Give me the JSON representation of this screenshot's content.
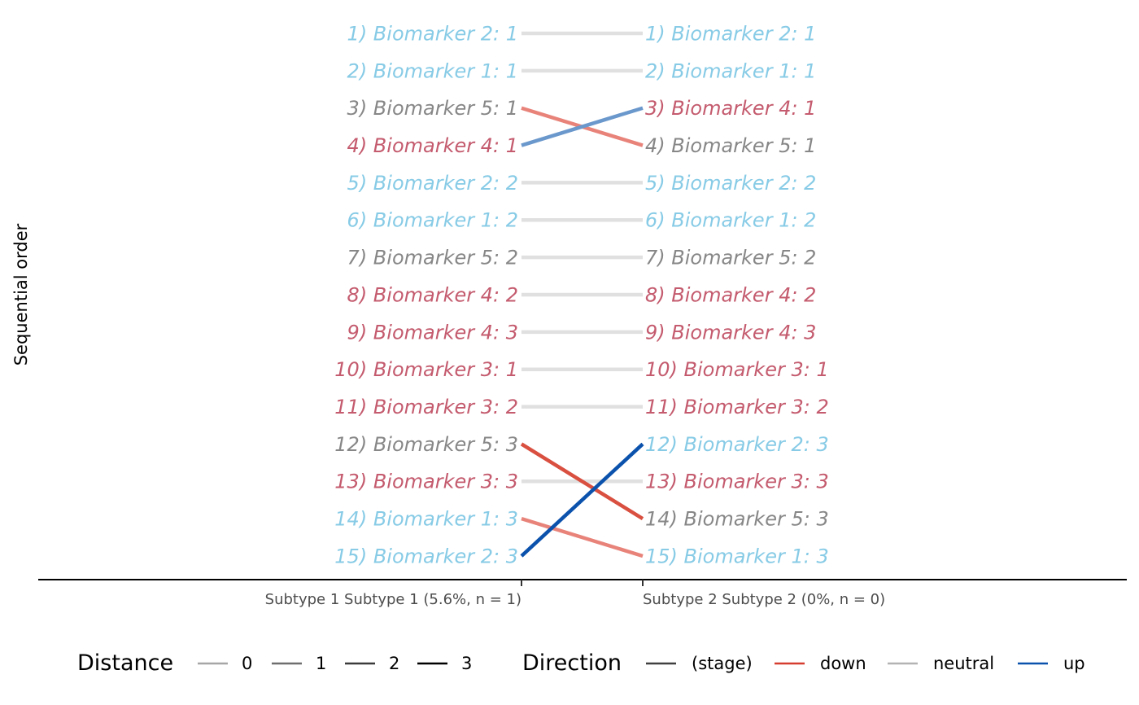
{
  "chart_data": {
    "type": "slope",
    "ylabel": "Sequential order",
    "categories": [
      "Subtype 1 Subtype 1 (5.6%, n = 1)",
      "Subtype 2 Subtype 2 (0%, n = 0)"
    ],
    "colors": {
      "biomarker_1": "#87cbe6",
      "biomarker_2": "#87cbe6",
      "biomarker_3": "#c45b6e",
      "biomarker_4": "#c45b6e",
      "biomarker_5": "#878787",
      "neutral": "#e0e0e0",
      "down_light": "#e8837a",
      "down_dark": "#d94f40",
      "up_light": "#6b98cc",
      "up_dark": "#0b52ad"
    },
    "left_labels": [
      {
        "text": "1) Biomarker 2: 1",
        "group": "biomarker_2"
      },
      {
        "text": "2) Biomarker 1: 1",
        "group": "biomarker_1"
      },
      {
        "text": "3) Biomarker 5: 1",
        "group": "biomarker_5"
      },
      {
        "text": "4) Biomarker 4: 1",
        "group": "biomarker_4"
      },
      {
        "text": "5) Biomarker 2: 2",
        "group": "biomarker_2"
      },
      {
        "text": "6) Biomarker 1: 2",
        "group": "biomarker_1"
      },
      {
        "text": "7) Biomarker 5: 2",
        "group": "biomarker_5"
      },
      {
        "text": "8) Biomarker 4: 2",
        "group": "biomarker_4"
      },
      {
        "text": "9) Biomarker 4: 3",
        "group": "biomarker_4"
      },
      {
        "text": "10) Biomarker 3: 1",
        "group": "biomarker_3"
      },
      {
        "text": "11) Biomarker 3: 2",
        "group": "biomarker_3"
      },
      {
        "text": "12) Biomarker 5: 3",
        "group": "biomarker_5"
      },
      {
        "text": "13) Biomarker 3: 3",
        "group": "biomarker_3"
      },
      {
        "text": "14) Biomarker 1: 3",
        "group": "biomarker_1"
      },
      {
        "text": "15) Biomarker 2: 3",
        "group": "biomarker_2"
      }
    ],
    "right_labels": [
      {
        "text": "1) Biomarker 2: 1",
        "group": "biomarker_2"
      },
      {
        "text": "2) Biomarker 1: 1",
        "group": "biomarker_1"
      },
      {
        "text": "3) Biomarker 4: 1",
        "group": "biomarker_4"
      },
      {
        "text": "4) Biomarker 5: 1",
        "group": "biomarker_5"
      },
      {
        "text": "5) Biomarker 2: 2",
        "group": "biomarker_2"
      },
      {
        "text": "6) Biomarker 1: 2",
        "group": "biomarker_1"
      },
      {
        "text": "7) Biomarker 5: 2",
        "group": "biomarker_5"
      },
      {
        "text": "8) Biomarker 4: 2",
        "group": "biomarker_4"
      },
      {
        "text": "9) Biomarker 4: 3",
        "group": "biomarker_4"
      },
      {
        "text": "10) Biomarker 3: 1",
        "group": "biomarker_3"
      },
      {
        "text": "11) Biomarker 3: 2",
        "group": "biomarker_3"
      },
      {
        "text": "12) Biomarker 2: 3",
        "group": "biomarker_2"
      },
      {
        "text": "13) Biomarker 3: 3",
        "group": "biomarker_3"
      },
      {
        "text": "14) Biomarker 5: 3",
        "group": "biomarker_5"
      },
      {
        "text": "15) Biomarker 1: 3",
        "group": "biomarker_1"
      }
    ],
    "segments": [
      {
        "from": 1,
        "to": 1,
        "direction": "neutral",
        "distance": 0
      },
      {
        "from": 2,
        "to": 2,
        "direction": "neutral",
        "distance": 0
      },
      {
        "from": 3,
        "to": 4,
        "direction": "down",
        "distance": 1
      },
      {
        "from": 4,
        "to": 3,
        "direction": "up",
        "distance": 1
      },
      {
        "from": 5,
        "to": 5,
        "direction": "neutral",
        "distance": 0
      },
      {
        "from": 6,
        "to": 6,
        "direction": "neutral",
        "distance": 0
      },
      {
        "from": 7,
        "to": 7,
        "direction": "neutral",
        "distance": 0
      },
      {
        "from": 8,
        "to": 8,
        "direction": "neutral",
        "distance": 0
      },
      {
        "from": 9,
        "to": 9,
        "direction": "neutral",
        "distance": 0
      },
      {
        "from": 10,
        "to": 10,
        "direction": "neutral",
        "distance": 0
      },
      {
        "from": 11,
        "to": 11,
        "direction": "neutral",
        "distance": 0
      },
      {
        "from": 13,
        "to": 13,
        "direction": "neutral",
        "distance": 0
      },
      {
        "from": 14,
        "to": 15,
        "direction": "down",
        "distance": 1
      },
      {
        "from": 12,
        "to": 14,
        "direction": "down",
        "distance": 2
      },
      {
        "from": 15,
        "to": 12,
        "direction": "up",
        "distance": 3
      }
    ],
    "legend": {
      "distance": {
        "title": "Distance",
        "items": [
          {
            "label": "0",
            "color": "#a6a6a6"
          },
          {
            "label": "1",
            "color": "#6e6e6e"
          },
          {
            "label": "2",
            "color": "#3b3b3b"
          },
          {
            "label": "3",
            "color": "#000000"
          }
        ]
      },
      "direction": {
        "title": "Direction",
        "items": [
          {
            "label": "(stage)",
            "color": "#404040"
          },
          {
            "label": "down",
            "color": "#d43d2f"
          },
          {
            "label": "neutral",
            "color": "#b3b3b3"
          },
          {
            "label": "up",
            "color": "#0b52ad"
          }
        ]
      }
    }
  }
}
